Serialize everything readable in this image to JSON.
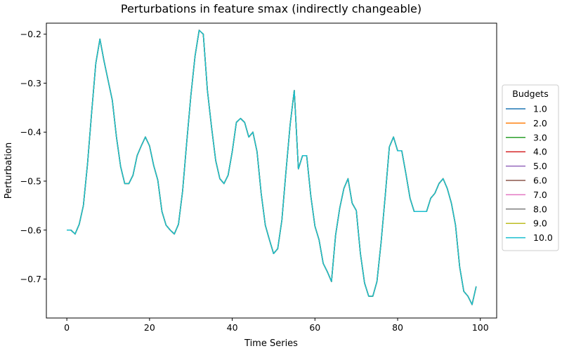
{
  "chart_data": {
    "type": "line",
    "title": "Perturbations in feature smax (indirectly changeable)",
    "xlabel": "Time Series",
    "ylabel": "Perturbation",
    "xlim": [
      -4.95,
      103.95
    ],
    "ylim": [
      -0.7795,
      -0.1775
    ],
    "xticks": [
      0,
      20,
      40,
      60,
      80,
      100
    ],
    "yticks": [
      -0.7,
      -0.6,
      -0.5,
      -0.4,
      -0.3,
      -0.2
    ],
    "ytick_labels": [
      "−0.7",
      "−0.6",
      "−0.5",
      "−0.4",
      "−0.3",
      "−0.2"
    ],
    "grid": false,
    "legend": {
      "title": "Budgets",
      "placement": "outside-right"
    },
    "x": [
      0,
      1,
      2,
      3,
      4,
      5,
      6,
      7,
      8,
      9,
      10,
      11,
      12,
      13,
      14,
      15,
      16,
      17,
      18,
      19,
      20,
      21,
      22,
      23,
      24,
      25,
      26,
      27,
      28,
      29,
      30,
      31,
      32,
      33,
      34,
      35,
      36,
      37,
      38,
      39,
      40,
      41,
      42,
      43,
      44,
      45,
      46,
      47,
      48,
      49,
      50,
      51,
      52,
      53,
      54,
      55,
      56,
      57,
      58,
      59,
      60,
      61,
      62,
      63,
      64,
      65,
      66,
      67,
      68,
      69,
      70,
      71,
      72,
      73,
      74,
      75,
      76,
      77,
      78,
      79,
      80,
      81,
      82,
      83,
      84,
      85,
      86,
      87,
      88,
      89,
      90,
      91,
      92,
      93,
      94,
      95,
      96,
      97,
      98,
      99
    ],
    "series_values": [
      -0.6,
      -0.6,
      -0.608,
      -0.588,
      -0.55,
      -0.465,
      -0.36,
      -0.26,
      -0.21,
      -0.255,
      -0.295,
      -0.335,
      -0.41,
      -0.47,
      -0.505,
      -0.505,
      -0.488,
      -0.448,
      -0.428,
      -0.41,
      -0.428,
      -0.468,
      -0.498,
      -0.562,
      -0.59,
      -0.6,
      -0.608,
      -0.588,
      -0.52,
      -0.42,
      -0.325,
      -0.245,
      -0.192,
      -0.2,
      -0.315,
      -0.39,
      -0.458,
      -0.495,
      -0.505,
      -0.488,
      -0.44,
      -0.38,
      -0.372,
      -0.38,
      -0.41,
      -0.4,
      -0.44,
      -0.525,
      -0.59,
      -0.62,
      -0.648,
      -0.638,
      -0.58,
      -0.48,
      -0.385,
      -0.315,
      -0.475,
      -0.448,
      -0.448,
      -0.53,
      -0.592,
      -0.62,
      -0.668,
      -0.685,
      -0.705,
      -0.61,
      -0.555,
      -0.515,
      -0.495,
      -0.545,
      -0.56,
      -0.648,
      -0.708,
      -0.735,
      -0.735,
      -0.705,
      -0.625,
      -0.53,
      -0.43,
      -0.41,
      -0.438,
      -0.438,
      -0.485,
      -0.535,
      -0.562,
      -0.562,
      -0.562,
      -0.562,
      -0.535,
      -0.525,
      -0.505,
      -0.495,
      -0.515,
      -0.545,
      -0.59,
      -0.675,
      -0.725,
      -0.735,
      -0.752,
      -0.715
    ],
    "series": [
      {
        "name": "1.0",
        "color": "#1f77b4"
      },
      {
        "name": "2.0",
        "color": "#ff7f0e"
      },
      {
        "name": "3.0",
        "color": "#2ca02c"
      },
      {
        "name": "4.0",
        "color": "#d62728"
      },
      {
        "name": "5.0",
        "color": "#9467bd"
      },
      {
        "name": "6.0",
        "color": "#8c564b"
      },
      {
        "name": "7.0",
        "color": "#e377c2"
      },
      {
        "name": "8.0",
        "color": "#7f7f7f"
      },
      {
        "name": "9.0",
        "color": "#bcbd22"
      },
      {
        "name": "10.0",
        "color": "#17becf"
      }
    ]
  }
}
